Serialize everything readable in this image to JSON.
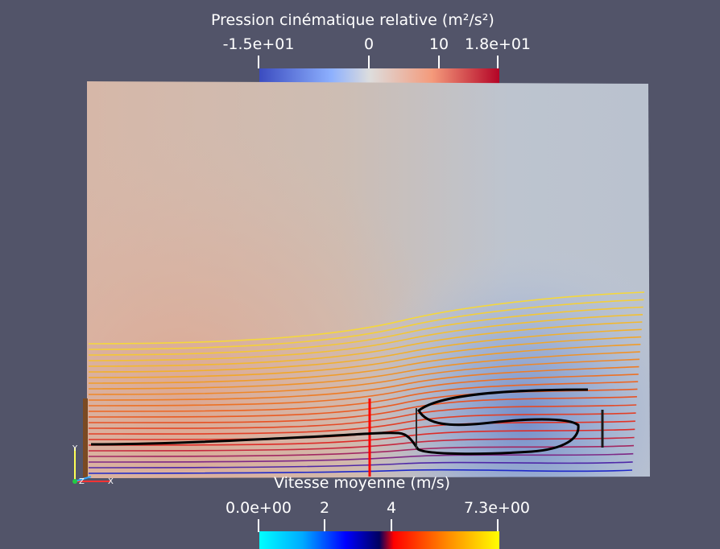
{
  "pressure_legend": {
    "title": "Pression cinématique relative (m²/s²)",
    "ticks": [
      "-1.5e+01",
      "0",
      "10",
      "1.8e+01"
    ]
  },
  "velocity_legend": {
    "title": "Vitesse moyenne (m/s)",
    "ticks": [
      "0.0e+00",
      "2",
      "4",
      "7.3e+00"
    ]
  },
  "axes_triad": {
    "y": "Y",
    "z": "Z",
    "x": "X"
  },
  "colors": {
    "background": "#525469",
    "pressure_low": "#3b4cc0",
    "pressure_mid": "#dddddd",
    "pressure_high": "#b40426",
    "velocity_low": "#00ffff",
    "velocity_mid_dark": "#000040",
    "velocity_mid_red": "#ff0000",
    "velocity_high": "#ffff00",
    "section_line": "#ff0000",
    "separation_contour": "#000000"
  }
}
